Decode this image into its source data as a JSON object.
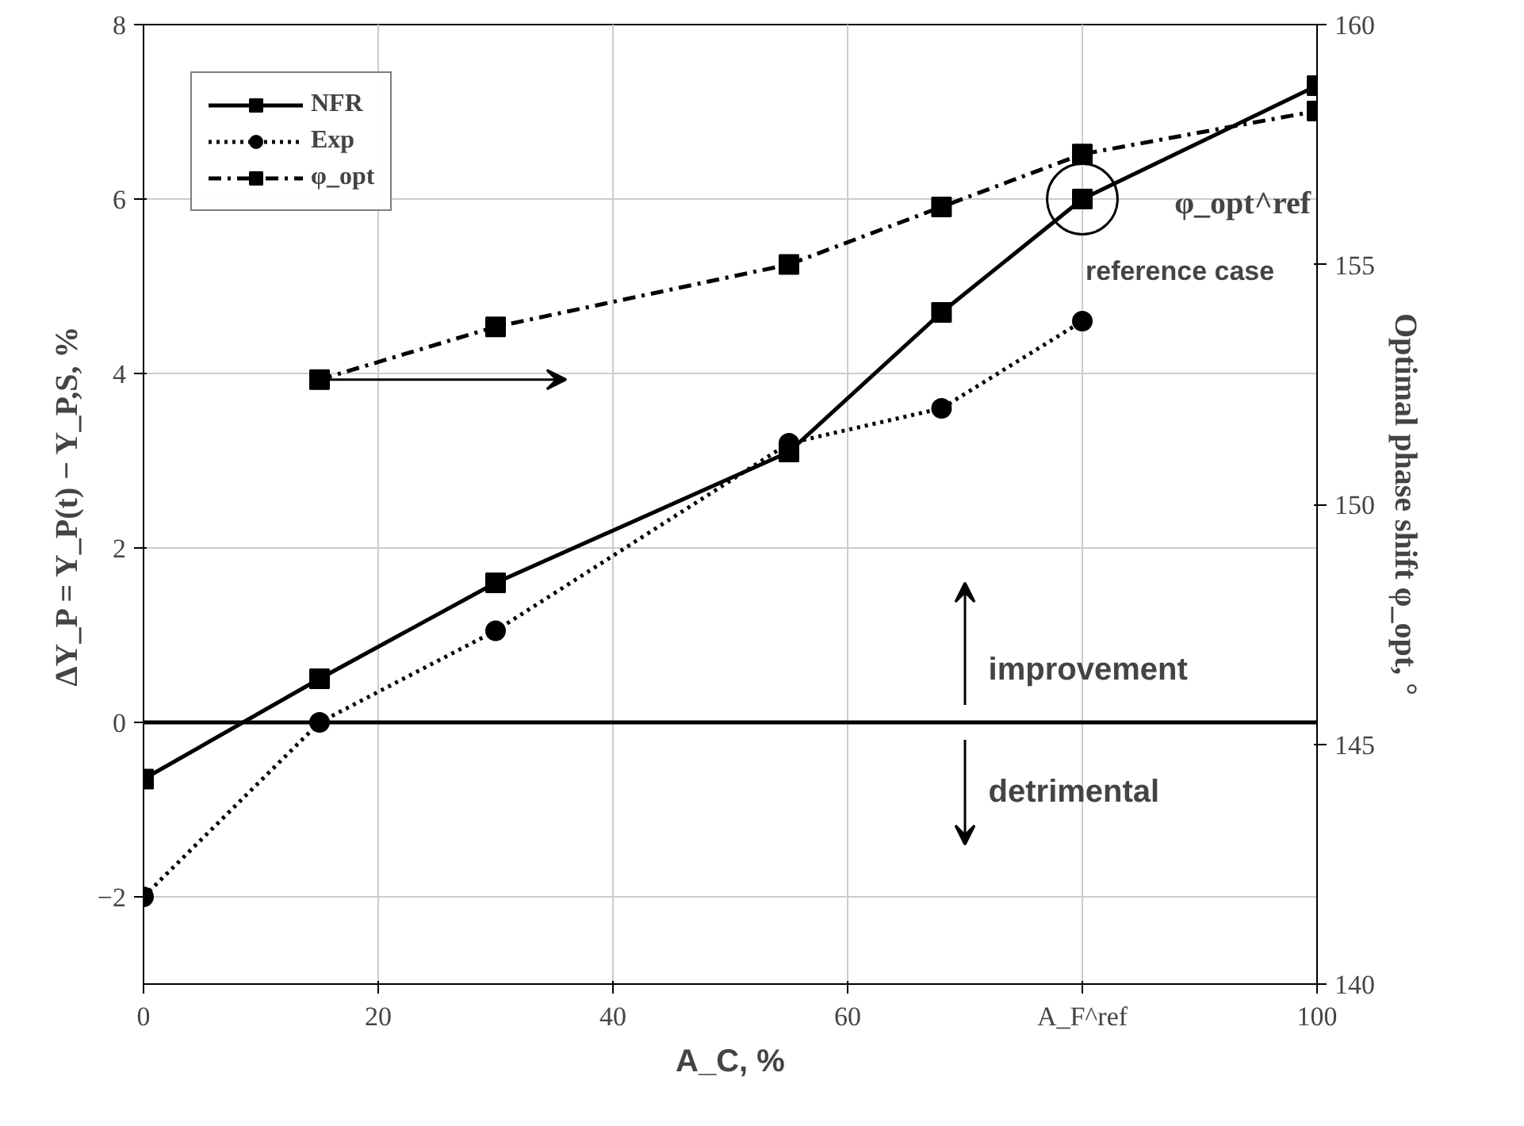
{
  "chart_data": {
    "type": "line",
    "xlabel": "A_C, %",
    "ylabel": "ΔY_P = Y_P(t) − Y_P,S, %",
    "y2label": "Optimal phase shift φ_opt, °",
    "xlim": [
      0,
      100
    ],
    "xticks": [
      0,
      20,
      40,
      60,
      {
        "value": 80,
        "label": "A_F^ref"
      },
      100
    ],
    "ylim": [
      -3,
      8
    ],
    "yticks": [
      -2,
      0,
      2,
      4,
      6,
      8
    ],
    "y2lim": [
      140,
      160
    ],
    "y2ticks": [
      140,
      145,
      150,
      155,
      160
    ],
    "grid": true,
    "legend": "top left",
    "series": [
      {
        "name": "NFR",
        "color": "#000000",
        "marker": "square",
        "line_style": "solid",
        "x": [
          0,
          15,
          30,
          55,
          68,
          80,
          100
        ],
        "values": [
          -0.65,
          0.5,
          1.6,
          3.1,
          4.7,
          6.0,
          7.3
        ]
      },
      {
        "name": "Exp",
        "color": "#000000",
        "marker": "circle",
        "line_style": "dotted",
        "x": [
          0,
          15,
          30,
          55,
          68,
          80
        ],
        "values": [
          -2.0,
          0.0,
          1.05,
          3.2,
          3.6,
          4.6
        ]
      },
      {
        "name": "φ_opt",
        "color": "#000000",
        "marker": "square",
        "line_style": "dashed",
        "axis": "y2",
        "x": [
          15,
          30,
          55,
          68,
          80,
          100
        ],
        "values": [
          152.6,
          153.7,
          155.0,
          156.2,
          157.3,
          158.2
        ]
      }
    ],
    "ref_lines": [
      {
        "axis": "y",
        "value": 0,
        "color": "#000000",
        "line_style": "solid"
      }
    ],
    "annotations": [
      {
        "text": "reference case",
        "x": 80,
        "y": 6.0
      },
      "improvement",
      "detrimental",
      "φ_opt^ref"
    ]
  }
}
